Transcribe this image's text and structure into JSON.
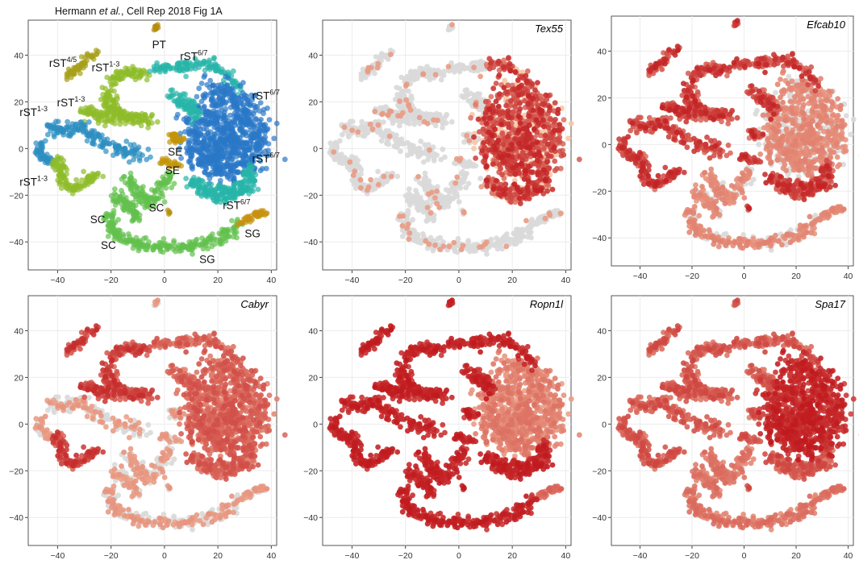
{
  "credit": {
    "pre": "Hermann ",
    "etal": "et al.",
    "post": ", Cell Rep  2018 Fig 1A"
  },
  "chart_data": [
    {
      "type": "scatter",
      "title": "",
      "xticks": [
        -40,
        -20,
        0,
        20,
        40
      ],
      "yticks": [
        -40,
        -20,
        0,
        20,
        40
      ],
      "xlim": [
        -51,
        42
      ],
      "ylim": [
        -52,
        55
      ],
      "grid": true,
      "color_mode": "cluster",
      "cluster_labels": [
        {
          "text": "PT",
          "x": -2,
          "y": 43
        },
        {
          "text": "rST",
          "sup": "4/5",
          "x": -38,
          "y": 35
        },
        {
          "text": "rST",
          "sup": "1-3",
          "x": -22,
          "y": 33
        },
        {
          "text": "rST",
          "sup": "6/7",
          "x": 11,
          "y": 38
        },
        {
          "text": "rST",
          "sup": "1-3",
          "x": -35,
          "y": 18
        },
        {
          "text": "rST",
          "sup": "1-3",
          "x": -49,
          "y": 14
        },
        {
          "text": "rST",
          "sup": "6/7",
          "x": 38,
          "y": 21
        },
        {
          "text": "SE",
          "x": 4,
          "y": -3
        },
        {
          "text": "SE",
          "x": 3,
          "y": -11
        },
        {
          "text": "rST",
          "sup": "6/7",
          "x": 38,
          "y": -6
        },
        {
          "text": "rST",
          "sup": "1-3",
          "x": -49,
          "y": -16
        },
        {
          "text": "SC",
          "x": -25,
          "y": -32
        },
        {
          "text": "SC",
          "x": -3,
          "y": -27
        },
        {
          "text": "SC",
          "x": -21,
          "y": -43
        },
        {
          "text": "rST",
          "sup": "6/7",
          "x": 27,
          "y": -26
        },
        {
          "text": "SG",
          "x": 33,
          "y": -38
        },
        {
          "text": "SG",
          "x": 16,
          "y": -49
        }
      ]
    },
    {
      "type": "scatter",
      "title": "Tex55",
      "xticks": [
        -40,
        -20,
        0,
        20,
        40
      ],
      "yticks": [
        -40,
        -20,
        0,
        20,
        40
      ],
      "xlim": [
        -51,
        42
      ],
      "ylim": [
        -52,
        55
      ],
      "grid": true,
      "color_mode": "expression"
    },
    {
      "type": "scatter",
      "title": "Efcab10",
      "xticks": [
        -40,
        -20,
        0,
        20,
        40
      ],
      "yticks": [
        -40,
        -20,
        0,
        20,
        40
      ],
      "xlim": [
        -51,
        42
      ],
      "ylim": [
        -52,
        55
      ],
      "grid": true,
      "color_mode": "expression"
    },
    {
      "type": "scatter",
      "title": "Cabyr",
      "xticks": [
        -40,
        -20,
        0,
        20,
        40
      ],
      "yticks": [
        -40,
        -20,
        0,
        20,
        40
      ],
      "xlim": [
        -51,
        42
      ],
      "ylim": [
        -52,
        55
      ],
      "grid": true,
      "color_mode": "expression"
    },
    {
      "type": "scatter",
      "title": "Ropn1l",
      "xticks": [
        -40,
        -20,
        0,
        20,
        40
      ],
      "yticks": [
        -40,
        -20,
        0,
        20,
        40
      ],
      "xlim": [
        -51,
        42
      ],
      "ylim": [
        -52,
        55
      ],
      "grid": true,
      "color_mode": "expression"
    },
    {
      "type": "scatter",
      "title": "Spa17",
      "xticks": [
        -40,
        -20,
        0,
        20,
        40
      ],
      "yticks": [
        -40,
        -20,
        0,
        20,
        40
      ],
      "xlim": [
        -51,
        42
      ],
      "ylim": [
        -52,
        55
      ],
      "grid": true,
      "color_mode": "expression"
    }
  ],
  "colors": {
    "expr_none": "#d9d9d9",
    "expr_low": "#f7c6a6",
    "expr_high": "#c0191e",
    "cluster": {
      "PT": "#b58d0a",
      "rST45": "#a6a01a",
      "rST13": "#8fbc2a",
      "rST67_top": "#26b5a8",
      "rST67_right": "#2a78c8",
      "SE": "#c39408",
      "SC": "#62c04d",
      "SG": "#c89210",
      "rST13_left": "#2c8fc0"
    }
  }
}
